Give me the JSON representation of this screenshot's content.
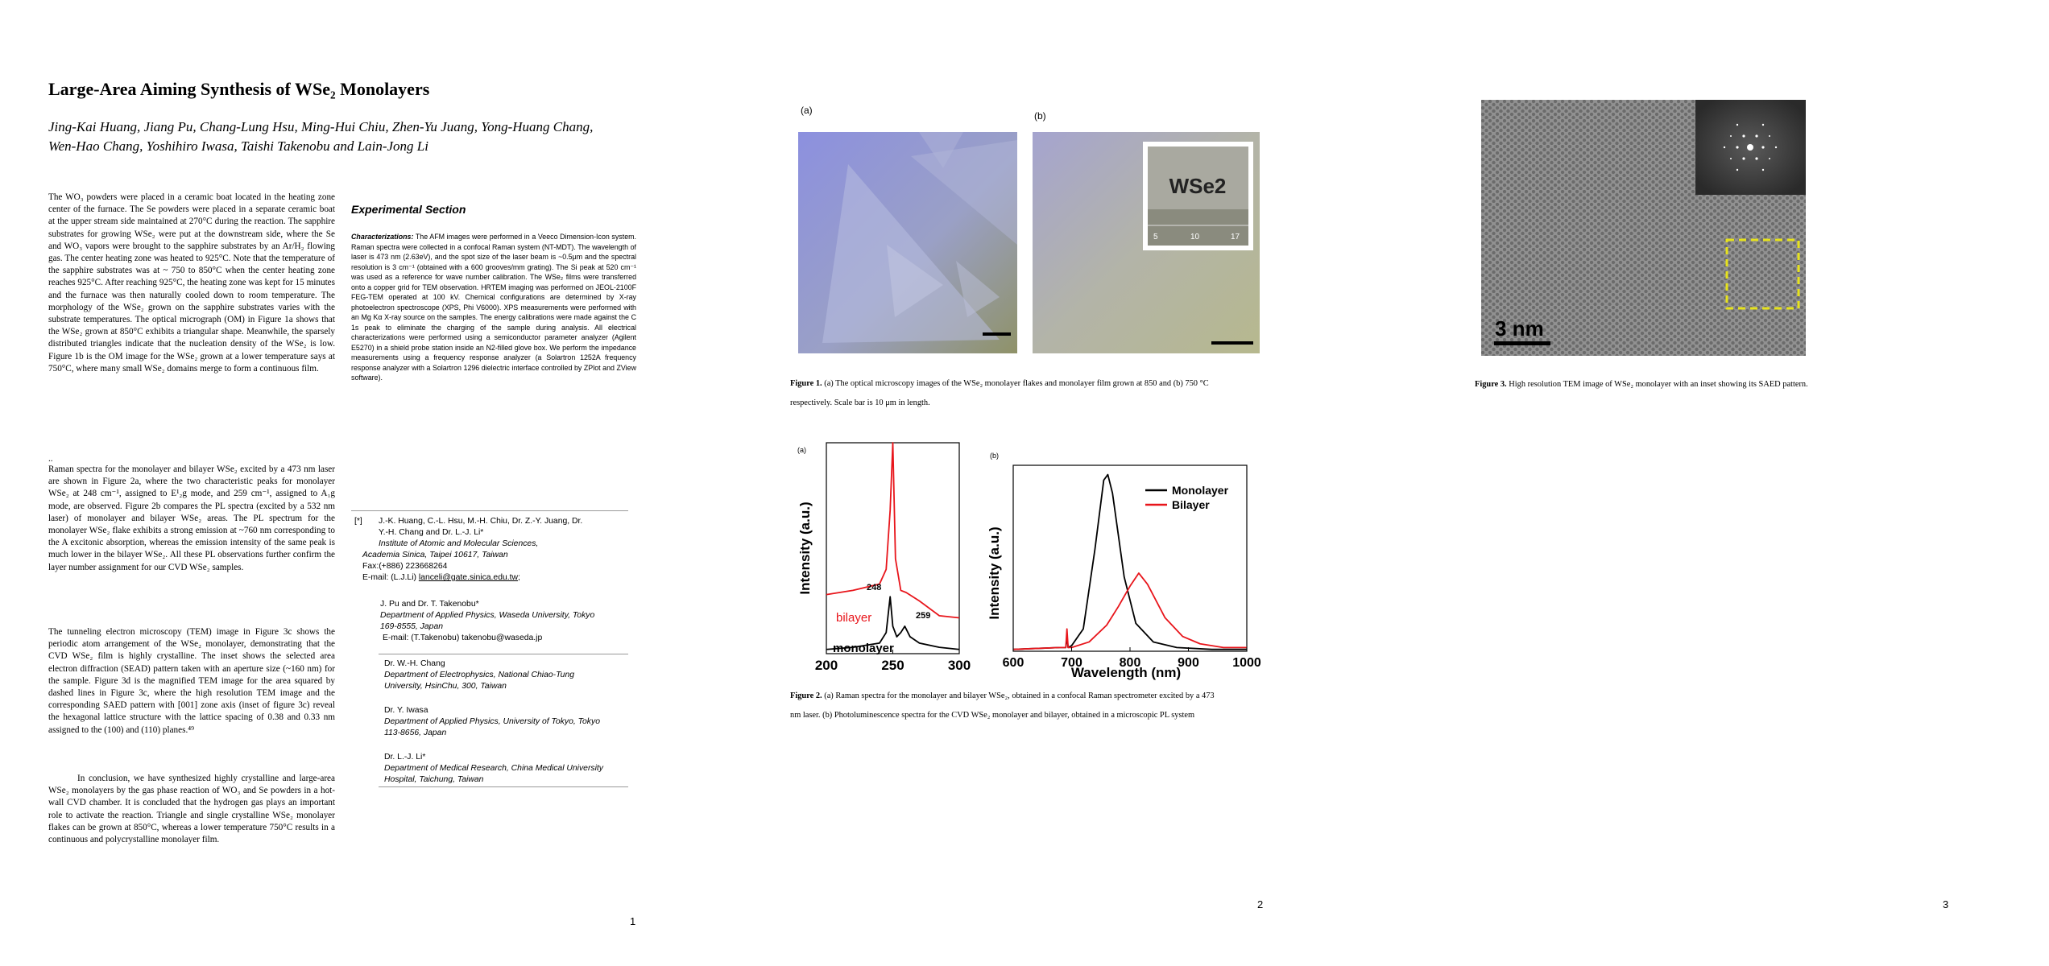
{
  "page1": {
    "title": "Large-Area Aiming Synthesis of WSe₂ Monolayers",
    "authors_line1": "Jing-Kai Huang, Jiang Pu, Chang-Lung Hsu, Ming-Hui Chiu, Zhen-Yu Juang, Yong-Huang Chang,",
    "authors_line2": "Wen-Hao Chang, Yoshihiro Iwasa, Taishi Takenobu and Lain-Jong Li",
    "para1": "The WO₃ powders were placed in a ceramic boat located in the heating zone center of the furnace. The Se powders were placed in a separate ceramic boat at the upper stream side maintained at 270°C during the reaction. The sapphire substrates for growing WSe₂ were put at the downstream side, where the Se and WO₃ vapors were brought to the sapphire substrates by an Ar/H₂ flowing gas. The center heating zone was heated to 925°C. Note that the temperature of the sapphire substrates was at ~ 750 to 850°C when the center heating zone reaches 925°C. After reaching 925°C, the heating zone was kept for 15 minutes and the furnace was then naturally cooled down to room temperature. The morphology of the WSe₂ grown on the sapphire substrates varies with the substrate temperatures. The optical micrograph (OM) in Figure 1a shows that the WSe₂ grown at 850°C exhibits a triangular shape. Meanwhile, the sparsely distributed triangles indicate that the nucleation density of the WSe₂ is low. Figure 1b is the OM image for the WSe₂ grown at a lower temperature says at 750°C, where many small WSe₂ domains merge to form a continuous film.",
    "dots": "..",
    "para2": "Raman spectra for the monolayer and bilayer WSe₂ excited by a 473 nm laser are shown in Figure 2a, where the two characteristic peaks for monolayer WSe₂ at 248 cm⁻¹, assigned to E¹₂g mode, and 259 cm⁻¹, assigned to A₁g mode, are observed. Figure 2b compares the PL spectra (excited by a 532 nm laser) of monolayer and bilayer WSe₂ areas. The PL spectrum for the monolayer WSe₂ flake exhibits a strong emission at ~760 nm corresponding to the A excitonic absorption, whereas the emission intensity of the same peak is much lower in the bilayer WSe₂. All these PL observations further confirm the layer number assignment for our CVD WSe₂ samples.",
    "para3": "The tunneling electron microscopy (TEM) image in Figure 3c shows the periodic atom arrangement of the WSe₂ monolayer, demonstrating that the CVD WSe₂ film is highly crystalline. The inset shows the selected area electron diffraction (SEAD) pattern taken with an aperture size (~160 nm) for the sample. Figure 3d is the magnified TEM image for the area squared by dashed lines in Figure 3c, where the high resolution TEM image and the corresponding SAED pattern with [001] zone axis (inset of figure 3c) reveal the hexagonal lattice structure with the lattice spacing of 0.38 and 0.33 nm assigned to the (100) and (110) planes.⁴⁹",
    "para4": "In conclusion, we have synthesized highly crystalline and large-area WSe₂ monolayers by the gas phase reaction of WO₃ and Se powders in a hot-wall CVD chamber. It is concluded that the hydrogen gas plays an important role to activate the reaction. Triangle and single crystalline WSe₂ monolayer flakes can be grown at 850°C, whereas a lower temperature 750°C results in a continuous and polycrystalline monolayer film.",
    "exp_heading": "Experimental Section",
    "exp_lead": "Characterizations:",
    "exp_text": " The AFM images were performed in a Veeco Dimension-Icon system. Raman spectra were collected in a confocal Raman system (NT-MDT). The wavelength of laser is 473 nm (2.63eV), and the spot size of the laser beam is ~0.5μm and the spectral resolution is 3 cm⁻¹ (obtained with a 600 grooves/mm grating). The Si peak at 520 cm⁻¹ was used as a reference for wave number calibration. The WSe₂ films were transferred onto a copper grid for TEM observation. HRTEM imaging was performed on JEOL-2100F FEG-TEM operated at 100 kV. Chemical configurations are determined by X-ray photoelectron spectroscope (XPS, Phi V6000). XPS measurements were performed with an Mg Kα X-ray source on the samples. The energy calibrations were made against the C 1s peak to eliminate the charging of the sample during analysis. All electrical characterizations were performed using a semiconductor parameter analyzer (Agilent E5270) in a shield probe station inside an N2-filled glove box. We perform the impedance measurements using a frequency response analyzer (a Solartron 1252A frequency response analyzer with a Solartron 1296 dielectric interface controlled by ZPlot and ZView software).",
    "aff_mark": "[*]",
    "aff1_l1": "J.-K. Huang, C.-L. Hsu, M.-H. Chiu, Dr. Z.-Y. Juang, Dr.",
    "aff1_l2": "Y.-H. Chang and Dr. L.-J. Li*",
    "aff1_l3": "Institute of Atomic and Molecular Sciences,",
    "aff1_l4": "Academia Sinica, Taipei 10617, Taiwan",
    "aff1_l5": "Fax:(+886) 223668264",
    "aff1_l6a": "E-mail: (L.J.Li) ",
    "aff1_l6b": "lanceli@gate.sinica.edu.tw",
    "aff1_l6c": ";",
    "aff2_l1": "J. Pu and Dr. T. Takenobu*",
    "aff2_l2": "Department of Applied Physics, Waseda University, Tokyo",
    "aff2_l3": "169-8555, Japan",
    "aff2_l4": "E-mail: (T.Takenobu)    takenobu@waseda.jp",
    "aff3_l1": "Dr. W.-H. Chang",
    "aff3_l2": "Department of Electrophysics, National Chiao-Tung",
    "aff3_l3": "University, HsinChu, 300, Taiwan",
    "aff4_l1": "Dr. Y. Iwasa",
    "aff4_l2": "Department of Applied Physics, University of Tokyo, Tokyo",
    "aff4_l3": "113-8656, Japan",
    "aff5_l1": "Dr. L.-J. Li*",
    "aff5_l2": "Department of Medical Research, China Medical University",
    "aff5_l3": "Hospital, Taichung, Taiwan",
    "page_number": "1"
  },
  "page2": {
    "fig1a_label": "(a)",
    "fig1b_label": "(b)",
    "inset_text": "WSe2",
    "ruler_marks": [
      "5",
      "10",
      "17"
    ],
    "fig1_caption_bold": "Figure 1.",
    "fig1_caption_l1": " (a) The optical microscopy images of the WSe₂ monolayer flakes and monolayer film grown at 850 and (b) 750 °C",
    "fig1_caption_l2": "respectively. Scale bar is 10 μm in length.",
    "fig2a_label": "(a)",
    "fig2b_label": "(b)",
    "fig2_caption_bold": "Figure 2.",
    "fig2_caption_l1": " (a) Raman spectra for the monolayer and bilayer WSe₂, obtained in a confocal Raman spectrometer excited by a 473",
    "fig2_caption_l2": "nm laser. (b) Photoluminescence spectra for the CVD WSe₂ monolayer and bilayer, obtained in a microscopic PL system",
    "page_number": "2"
  },
  "page3": {
    "scale_text": "3 nm",
    "fig3_caption_bold": "Figure 3.",
    "fig3_caption": " High resolution TEM image of WSe₂ monolayer with an inset showing its SAED pattern.",
    "page_number": "3"
  },
  "colors": {
    "monolayer": "#000000",
    "bilayer": "#e8151b",
    "om_a": "#8f94d6",
    "om_b": "#b9b99a",
    "dashed_box": "#e6e21c"
  },
  "chart_data": [
    {
      "type": "line",
      "xlabel": "",
      "ylabel": "Intensity (a.u.)",
      "xlim": [
        200,
        300
      ],
      "x_ticks": [
        "200",
        "250",
        "300"
      ],
      "annotations": [
        "248",
        "259"
      ],
      "series": [
        {
          "name": "bilayer",
          "x": [
            200,
            220,
            240,
            245,
            248,
            250,
            252,
            256,
            260,
            270,
            285,
            300
          ],
          "y": [
            0.28,
            0.3,
            0.33,
            0.4,
            0.68,
            1.0,
            0.45,
            0.3,
            0.29,
            0.25,
            0.18,
            0.17
          ]
        },
        {
          "name": "monolayer",
          "x": [
            200,
            220,
            240,
            245,
            248,
            250,
            253,
            256,
            259,
            263,
            270,
            285,
            300
          ],
          "y": [
            0.02,
            0.03,
            0.05,
            0.1,
            0.27,
            0.13,
            0.08,
            0.1,
            0.13,
            0.08,
            0.05,
            0.03,
            0.02
          ]
        }
      ]
    },
    {
      "type": "line",
      "xlabel": "Wavelength (nm)",
      "ylabel": "Intensity (a.u.)",
      "xlim": [
        600,
        1000
      ],
      "x_ticks": [
        "600",
        "700",
        "800",
        "900",
        "1000"
      ],
      "legend": "top-right",
      "series": [
        {
          "name": "Monolayer",
          "x": [
            600,
            680,
            690,
            692,
            694,
            700,
            720,
            740,
            755,
            762,
            770,
            790,
            810,
            840,
            880,
            940,
            1000
          ],
          "y": [
            0.01,
            0.02,
            0.02,
            0.08,
            0.02,
            0.03,
            0.12,
            0.55,
            0.92,
            0.95,
            0.85,
            0.4,
            0.15,
            0.05,
            0.02,
            0.01,
            0.01
          ]
        },
        {
          "name": "Bilayer",
          "x": [
            600,
            680,
            690,
            692,
            694,
            700,
            730,
            760,
            780,
            800,
            815,
            830,
            860,
            890,
            920,
            960,
            1000
          ],
          "y": [
            0.01,
            0.02,
            0.02,
            0.12,
            0.02,
            0.02,
            0.05,
            0.14,
            0.24,
            0.35,
            0.42,
            0.36,
            0.18,
            0.08,
            0.04,
            0.02,
            0.02
          ]
        }
      ]
    }
  ]
}
